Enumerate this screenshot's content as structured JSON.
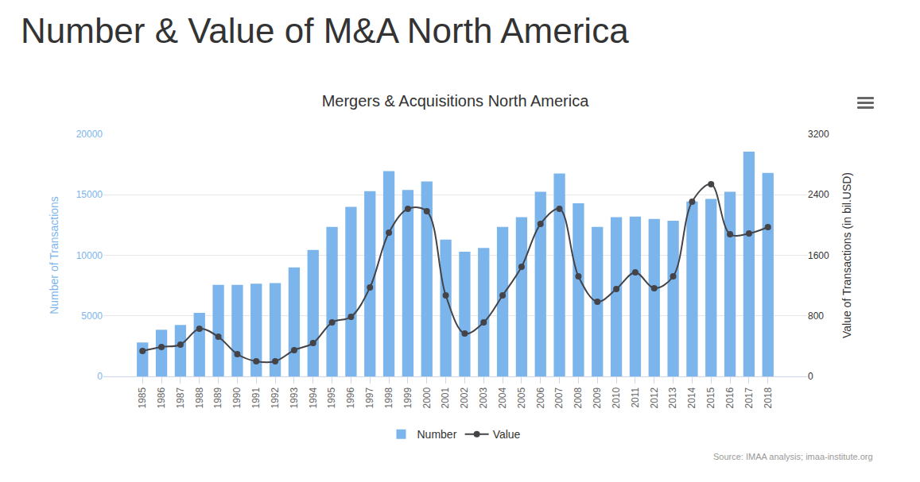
{
  "page": {
    "heading": "Number & Value of M&A North America"
  },
  "chart_data": {
    "type": "bar",
    "title": "Mergers & Acquisitions North America",
    "annotations": [
      "Source: IMAA analysis; imaa-institute.org"
    ],
    "categories": [
      "1985",
      "1986",
      "1987",
      "1988",
      "1989",
      "1990",
      "1991",
      "1992",
      "1993",
      "1994",
      "1995",
      "1996",
      "1997",
      "1998",
      "1999",
      "2000",
      "2001",
      "2002",
      "2003",
      "2004",
      "2005",
      "2006",
      "2007",
      "2008",
      "2009",
      "2010",
      "2011",
      "2012",
      "2013",
      "2014",
      "2015",
      "2016",
      "2017",
      "2018"
    ],
    "y_label": "Number of Transactions",
    "y2_label": "Value of Transactions (in bil.USD)",
    "ylim": [
      0,
      20000
    ],
    "yticks": [
      0,
      5000,
      10000,
      15000,
      20000
    ],
    "y2lim": [
      0,
      3200
    ],
    "y2ticks": [
      0,
      800,
      1600,
      2400,
      3200
    ],
    "grid": true,
    "legend": "bottom",
    "series": [
      {
        "name": "Number",
        "type": "bar",
        "color": "#7cb5ec",
        "values": [
          2800,
          3850,
          4250,
          5250,
          7550,
          7550,
          7650,
          7700,
          9000,
          10450,
          12350,
          14000,
          15300,
          16950,
          15400,
          16100,
          11300,
          10300,
          10600,
          12350,
          13150,
          15250,
          16750,
          14300,
          12350,
          13150,
          13200,
          13000,
          12850,
          14450,
          14650,
          15250,
          18550,
          16800
        ]
      },
      {
        "name": "Value",
        "type": "line",
        "axis": "y2",
        "color": "#434348",
        "marker": "circle",
        "line_style": "spline",
        "values": [
          336,
          388,
          420,
          629,
          524,
          294,
          199,
          199,
          346,
          440,
          713,
          787,
          1175,
          1899,
          2213,
          2182,
          1070,
          566,
          713,
          1070,
          1448,
          2014,
          2213,
          1322,
          986,
          1154,
          1374,
          1164,
          1322,
          2308,
          2539,
          1878,
          1888,
          1972
        ]
      }
    ]
  }
}
